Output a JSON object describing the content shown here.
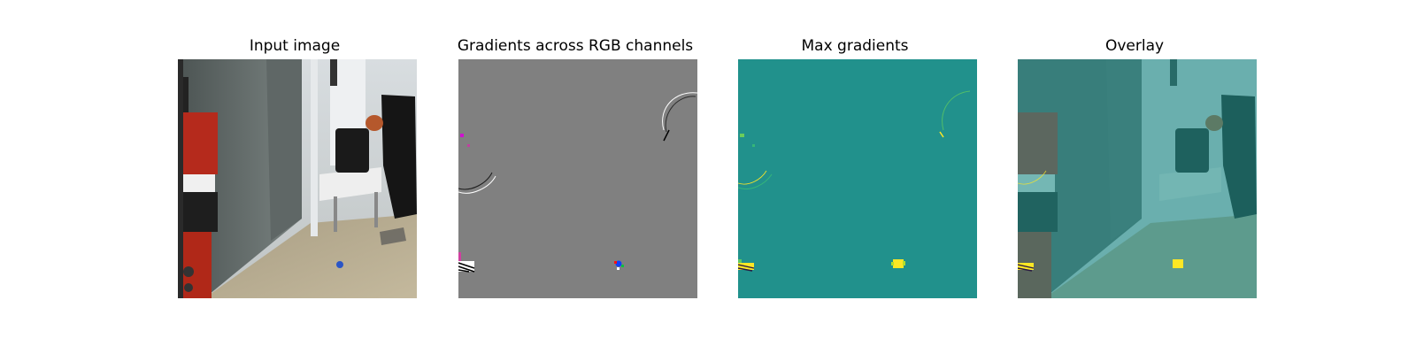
{
  "figure": {
    "panels": [
      {
        "title": "Input image"
      },
      {
        "title": "Gradients across RGB channels"
      },
      {
        "title": "Max gradients"
      },
      {
        "title": "Overlay"
      }
    ]
  },
  "colors": {
    "gray_background": "#808080",
    "teal_background": "#21918c",
    "yellow_highlight": "#fde725",
    "robot_red": "#b52a1c",
    "floor": "#b7ab8f"
  }
}
